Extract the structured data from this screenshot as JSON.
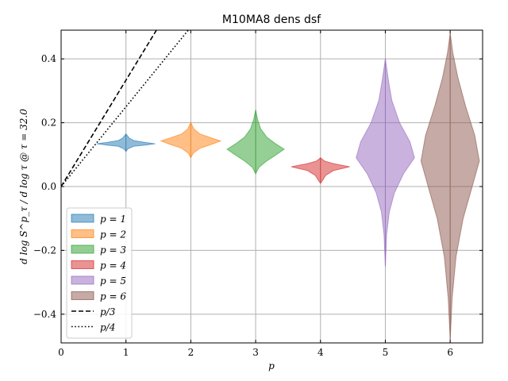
{
  "chart_data": {
    "type": "violin",
    "title": "M10MA8 dens dsf",
    "xlabel": "p",
    "ylabel": "d log S^p_τ / d log τ @ τ = 32.0",
    "xlim": [
      0,
      6.5
    ],
    "ylim": [
      -0.49,
      0.49
    ],
    "x_ticks": [
      0,
      1,
      2,
      3,
      4,
      5,
      6
    ],
    "y_ticks": [
      -0.4,
      -0.2,
      0.0,
      0.2,
      0.4
    ],
    "x_tick_labels": [
      "0",
      "1",
      "2",
      "3",
      "4",
      "5",
      "6"
    ],
    "y_tick_labels": [
      "−0.4",
      "−0.2",
      "0.0",
      "0.2",
      "0.4"
    ],
    "grid": true,
    "legend_position": "lower-left",
    "series": [
      {
        "name": "p = 1",
        "label": "p = 1",
        "position": 1,
        "color": "#1f77b4",
        "min": 0.11,
        "max": 0.165,
        "profile": [
          [
            0.11,
            0.0
          ],
          [
            0.118,
            0.03
          ],
          [
            0.126,
            0.12
          ],
          [
            0.13,
            0.3
          ],
          [
            0.134,
            0.45
          ],
          [
            0.138,
            0.3
          ],
          [
            0.144,
            0.12
          ],
          [
            0.152,
            0.05
          ],
          [
            0.16,
            0.02
          ],
          [
            0.165,
            0.0
          ]
        ]
      },
      {
        "name": "p = 2",
        "label": "p = 2",
        "position": 2,
        "color": "#ff7f0e",
        "min": 0.09,
        "max": 0.2,
        "profile": [
          [
            0.09,
            0.0
          ],
          [
            0.105,
            0.04
          ],
          [
            0.12,
            0.14
          ],
          [
            0.132,
            0.32
          ],
          [
            0.143,
            0.46
          ],
          [
            0.152,
            0.32
          ],
          [
            0.165,
            0.14
          ],
          [
            0.18,
            0.05
          ],
          [
            0.2,
            0.0
          ]
        ]
      },
      {
        "name": "p = 3",
        "label": "p = 3",
        "position": 3,
        "color": "#2ca02c",
        "min": 0.04,
        "max": 0.24,
        "profile": [
          [
            0.04,
            0.0
          ],
          [
            0.06,
            0.05
          ],
          [
            0.08,
            0.17
          ],
          [
            0.1,
            0.32
          ],
          [
            0.117,
            0.44
          ],
          [
            0.135,
            0.3
          ],
          [
            0.155,
            0.17
          ],
          [
            0.18,
            0.08
          ],
          [
            0.21,
            0.03
          ],
          [
            0.24,
            0.0
          ]
        ]
      },
      {
        "name": "p = 4",
        "label": "p = 4",
        "position": 4,
        "color": "#d62728",
        "min": 0.01,
        "max": 0.09,
        "profile": [
          [
            0.01,
            0.0
          ],
          [
            0.022,
            0.04
          ],
          [
            0.035,
            0.08
          ],
          [
            0.05,
            0.2
          ],
          [
            0.062,
            0.45
          ],
          [
            0.072,
            0.2
          ],
          [
            0.08,
            0.06
          ],
          [
            0.09,
            0.0
          ]
        ]
      },
      {
        "name": "p = 5",
        "label": "p = 5",
        "position": 5,
        "color": "#9467bd",
        "min": -0.25,
        "max": 0.4,
        "profile": [
          [
            -0.25,
            0.0
          ],
          [
            -0.15,
            0.02
          ],
          [
            -0.08,
            0.06
          ],
          [
            -0.02,
            0.14
          ],
          [
            0.04,
            0.28
          ],
          [
            0.09,
            0.45
          ],
          [
            0.14,
            0.38
          ],
          [
            0.2,
            0.22
          ],
          [
            0.27,
            0.1
          ],
          [
            0.33,
            0.05
          ],
          [
            0.4,
            0.0
          ]
        ]
      },
      {
        "name": "p = 6",
        "label": "p = 6",
        "position": 6,
        "color": "#8c564b",
        "min": -0.48,
        "max": 0.48,
        "profile": [
          [
            -0.48,
            0.0
          ],
          [
            -0.35,
            0.03
          ],
          [
            -0.22,
            0.09
          ],
          [
            -0.1,
            0.2
          ],
          [
            0.0,
            0.34
          ],
          [
            0.08,
            0.45
          ],
          [
            0.16,
            0.38
          ],
          [
            0.25,
            0.24
          ],
          [
            0.34,
            0.12
          ],
          [
            0.42,
            0.04
          ],
          [
            0.48,
            0.0
          ]
        ]
      }
    ],
    "reference_lines": [
      {
        "name": "p/3",
        "label": "p/3",
        "slope": 0.3333,
        "style": "dashed"
      },
      {
        "name": "p/4",
        "label": "p/4",
        "slope": 0.25,
        "style": "dotted"
      }
    ]
  }
}
